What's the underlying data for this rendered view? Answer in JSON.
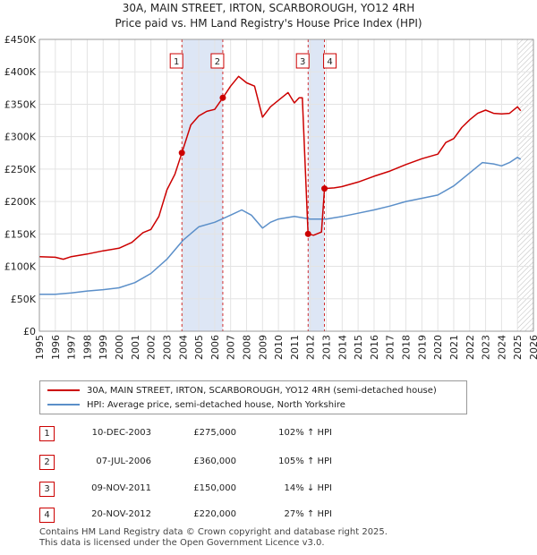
{
  "title_line1": "30A, MAIN STREET, IRTON, SCARBOROUGH, YO12 4RH",
  "title_line2": "Price paid vs. HM Land Registry's House Price Index (HPI)",
  "chart_data": {
    "type": "line",
    "x_range": [
      1995,
      2026
    ],
    "ylim": [
      0,
      450000
    ],
    "y_ticks": [
      0,
      50000,
      100000,
      150000,
      200000,
      250000,
      300000,
      350000,
      400000,
      450000
    ],
    "y_tick_labels": [
      "£0",
      "£50K",
      "£100K",
      "£150K",
      "£200K",
      "£250K",
      "£300K",
      "£350K",
      "£400K",
      "£450K"
    ],
    "x_ticks": [
      1995,
      1996,
      1997,
      1998,
      1999,
      2000,
      2001,
      2002,
      2003,
      2004,
      2005,
      2006,
      2007,
      2008,
      2009,
      2010,
      2011,
      2012,
      2013,
      2014,
      2015,
      2016,
      2017,
      2018,
      2019,
      2020,
      2021,
      2022,
      2023,
      2024,
      2025,
      2026
    ],
    "x_tick_labels": [
      "1995",
      "1996",
      "1997",
      "1998",
      "1999",
      "2000",
      "2001",
      "2002",
      "2003",
      "2004",
      "2005",
      "2006",
      "2007",
      "2008",
      "2009",
      "2010",
      "2011",
      "2012",
      "2013",
      "2014",
      "2015",
      "2016",
      "2017",
      "2018",
      "2019",
      "2020",
      "2021",
      "2022",
      "2023",
      "2024",
      "2025",
      "2026"
    ],
    "grid": true,
    "forecast_start": 2025.0,
    "series": [
      {
        "name": "30A, MAIN STREET, IRTON, SCARBOROUGH, YO12 4RH (semi-detached house)",
        "color": "#cc0000",
        "points": [
          [
            1995.0,
            115000
          ],
          [
            1996.0,
            114000
          ],
          [
            1996.5,
            111000
          ],
          [
            1997.0,
            115000
          ],
          [
            1998.0,
            119000
          ],
          [
            1999.0,
            124000
          ],
          [
            2000.0,
            128000
          ],
          [
            2000.8,
            137000
          ],
          [
            2001.5,
            152000
          ],
          [
            2002.0,
            157000
          ],
          [
            2002.5,
            177000
          ],
          [
            2003.0,
            218000
          ],
          [
            2003.5,
            242000
          ],
          [
            2003.94,
            275000
          ],
          [
            2004.5,
            318000
          ],
          [
            2005.0,
            332000
          ],
          [
            2005.5,
            339000
          ],
          [
            2006.0,
            342000
          ],
          [
            2006.51,
            360000
          ],
          [
            2007.0,
            378000
          ],
          [
            2007.5,
            393000
          ],
          [
            2008.0,
            383000
          ],
          [
            2008.5,
            378000
          ],
          [
            2009.0,
            330000
          ],
          [
            2009.5,
            346000
          ],
          [
            2010.0,
            356000
          ],
          [
            2010.6,
            368000
          ],
          [
            2011.0,
            352000
          ],
          [
            2011.3,
            360000
          ],
          [
            2011.5,
            360000
          ],
          [
            2011.86,
            150000
          ],
          [
            2012.2,
            148000
          ],
          [
            2012.7,
            153000
          ],
          [
            2012.89,
            220000
          ],
          [
            2013.5,
            221000
          ],
          [
            2014.0,
            223000
          ],
          [
            2015.0,
            230000
          ],
          [
            2016.0,
            239000
          ],
          [
            2017.0,
            247000
          ],
          [
            2018.0,
            257000
          ],
          [
            2019.0,
            266000
          ],
          [
            2020.0,
            273000
          ],
          [
            2020.5,
            291000
          ],
          [
            2021.0,
            297000
          ],
          [
            2021.5,
            314000
          ],
          [
            2022.0,
            326000
          ],
          [
            2022.5,
            336000
          ],
          [
            2023.0,
            341000
          ],
          [
            2023.5,
            336000
          ],
          [
            2024.0,
            335000
          ],
          [
            2024.5,
            336000
          ],
          [
            2025.0,
            346000
          ],
          [
            2025.2,
            340000
          ]
        ]
      },
      {
        "name": "HPI: Average price, semi-detached house, North Yorkshire",
        "color": "#5b8fc9",
        "points": [
          [
            1995.0,
            57000
          ],
          [
            1996.0,
            57000
          ],
          [
            1997.0,
            59000
          ],
          [
            1998.0,
            62000
          ],
          [
            1999.0,
            64000
          ],
          [
            2000.0,
            67000
          ],
          [
            2001.0,
            75000
          ],
          [
            2002.0,
            89000
          ],
          [
            2003.0,
            111000
          ],
          [
            2004.0,
            140000
          ],
          [
            2005.0,
            161000
          ],
          [
            2006.0,
            168000
          ],
          [
            2007.0,
            179000
          ],
          [
            2007.7,
            187000
          ],
          [
            2008.3,
            179000
          ],
          [
            2009.0,
            159000
          ],
          [
            2009.5,
            168000
          ],
          [
            2010.0,
            173000
          ],
          [
            2011.0,
            177000
          ],
          [
            2012.0,
            173000
          ],
          [
            2013.0,
            173000
          ],
          [
            2014.0,
            177000
          ],
          [
            2015.0,
            182000
          ],
          [
            2016.0,
            187000
          ],
          [
            2017.0,
            193000
          ],
          [
            2018.0,
            200000
          ],
          [
            2019.0,
            205000
          ],
          [
            2020.0,
            210000
          ],
          [
            2021.0,
            224000
          ],
          [
            2022.0,
            244000
          ],
          [
            2022.8,
            260000
          ],
          [
            2023.5,
            258000
          ],
          [
            2024.0,
            255000
          ],
          [
            2024.5,
            260000
          ],
          [
            2025.0,
            268000
          ],
          [
            2025.2,
            265000
          ]
        ]
      }
    ],
    "sales": [
      {
        "label": "1",
        "x": 2003.94,
        "price": 275000
      },
      {
        "label": "2",
        "x": 2006.51,
        "price": 360000
      },
      {
        "label": "3",
        "x": 2011.86,
        "price": 150000
      },
      {
        "label": "4",
        "x": 2012.89,
        "price": 220000
      }
    ],
    "shaded_regions": [
      [
        2003.94,
        2006.51
      ],
      [
        2011.86,
        2012.89
      ]
    ]
  },
  "legend": {
    "items": [
      {
        "label": "30A, MAIN STREET, IRTON, SCARBOROUGH, YO12 4RH (semi-detached house)",
        "color": "#cc0000"
      },
      {
        "label": "HPI: Average price, semi-detached house, North Yorkshire",
        "color": "#5b8fc9"
      }
    ]
  },
  "transactions": [
    {
      "num": "1",
      "date": "10-DEC-2003",
      "price": "£275,000",
      "hpi": "102% ↑ HPI"
    },
    {
      "num": "2",
      "date": "07-JUL-2006",
      "price": "£360,000",
      "hpi": "105% ↑ HPI"
    },
    {
      "num": "3",
      "date": "09-NOV-2011",
      "price": "£150,000",
      "hpi": "14% ↓ HPI"
    },
    {
      "num": "4",
      "date": "20-NOV-2012",
      "price": "£220,000",
      "hpi": "27% ↑ HPI"
    }
  ],
  "footer": {
    "line1": "Contains HM Land Registry data © Crown copyright and database right 2025.",
    "line2": "This data is licensed under the Open Government Licence v3.0."
  }
}
